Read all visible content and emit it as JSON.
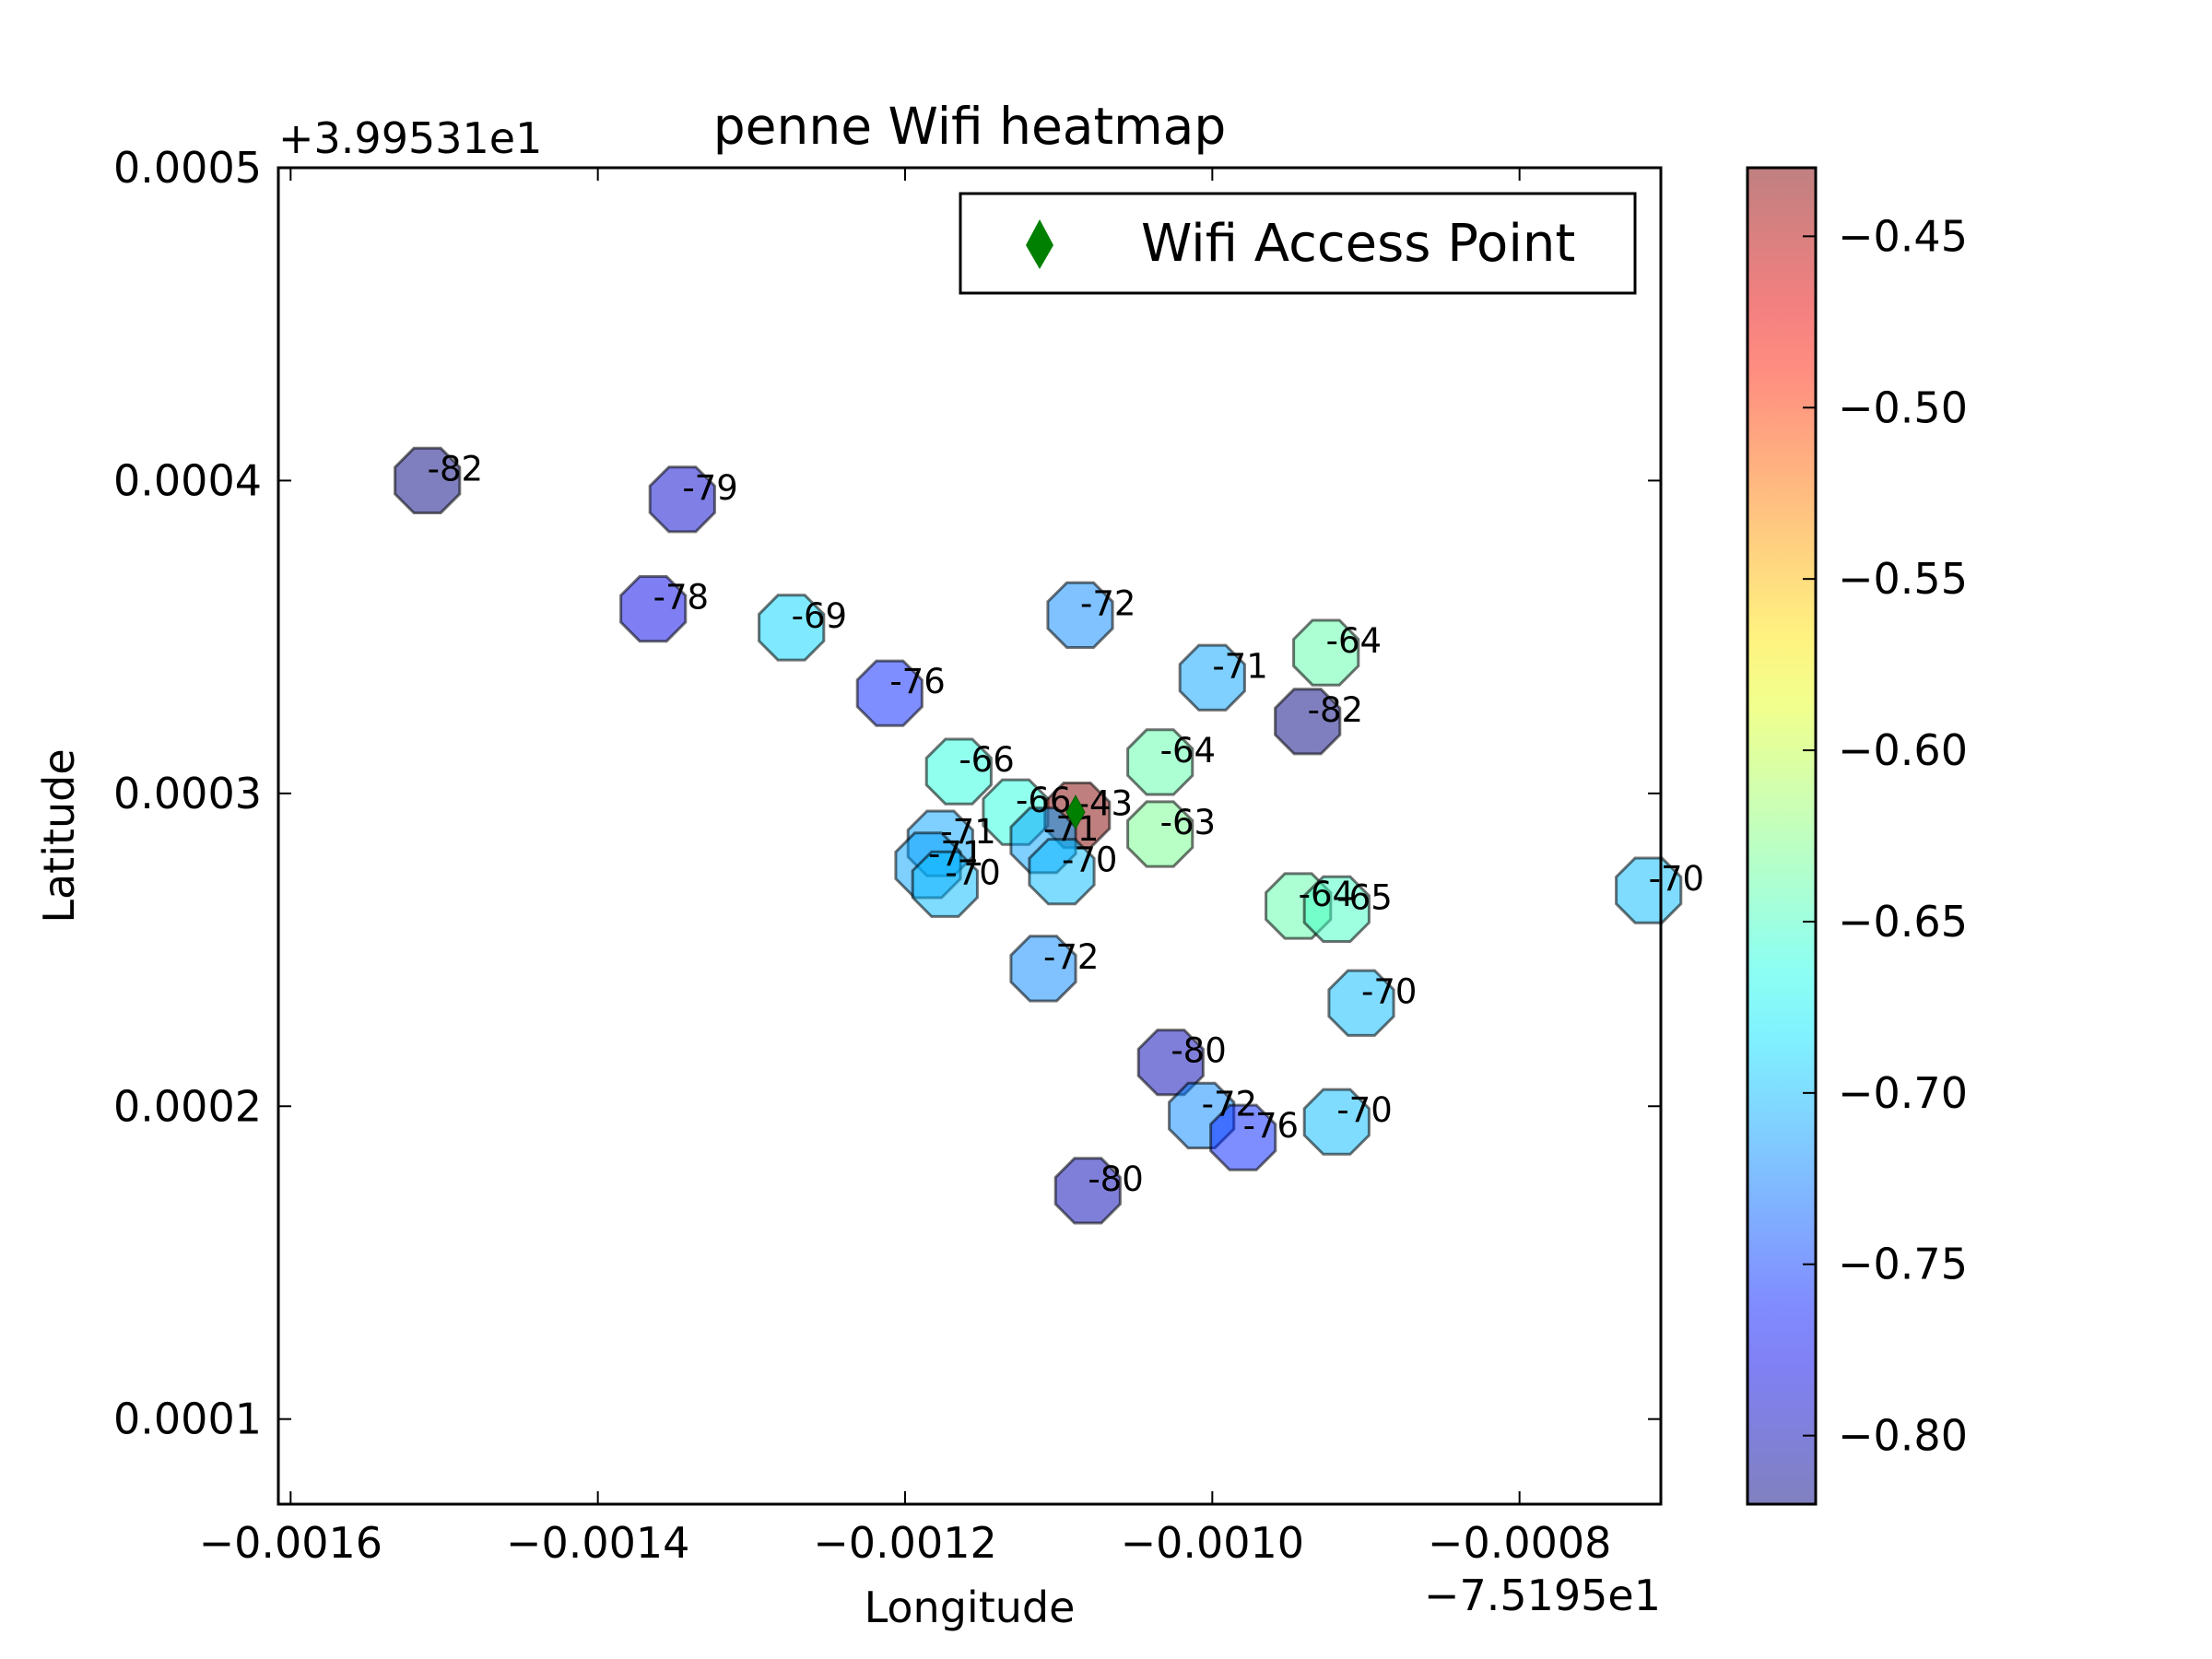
{
  "chart_data": {
    "type": "scatter",
    "title": "penne Wifi heatmap",
    "xlabel": "Longitude",
    "ylabel": "Latitude",
    "x_offset_label": "−7.5195e1",
    "y_offset_label": "+3.99531e1",
    "x_axis_base": -75.195,
    "y_axis_base": 39.9531,
    "xlim": [
      -0.001608,
      -0.000708
    ],
    "ylim": [
      7.28e-05,
      0.0005
    ],
    "xticks": [
      -0.0016,
      -0.0014,
      -0.0012,
      -0.001,
      -0.0008
    ],
    "xtick_labels": [
      "−0.0016",
      "−0.0014",
      "−0.0012",
      "−0.0010",
      "−0.0008"
    ],
    "yticks": [
      0.0001,
      0.0002,
      0.0003,
      0.0004,
      0.0005
    ],
    "ytick_labels": [
      "0.0001",
      "0.0002",
      "0.0003",
      "0.0004",
      "0.0005"
    ],
    "grid": false,
    "marker": "octagon",
    "alpha": 0.5,
    "colormap": "jet",
    "colorbar": {
      "range": [
        -0.82,
        -0.43
      ],
      "ticks": [
        -0.45,
        -0.5,
        -0.55,
        -0.6,
        -0.65,
        -0.7,
        -0.75,
        -0.8
      ],
      "tick_labels": [
        "−0.45",
        "−0.50",
        "−0.55",
        "−0.60",
        "−0.65",
        "−0.70",
        "−0.75",
        "−0.80"
      ]
    },
    "points": [
      {
        "x": -0.001511,
        "y": 0.0004,
        "label": "-82"
      },
      {
        "x": -0.001345,
        "y": 0.000394,
        "label": "-79"
      },
      {
        "x": -0.001364,
        "y": 0.000359,
        "label": "-78"
      },
      {
        "x": -0.001274,
        "y": 0.000353,
        "label": "-69"
      },
      {
        "x": -0.00121,
        "y": 0.000332,
        "label": "-76"
      },
      {
        "x": -0.001086,
        "y": 0.000357,
        "label": "-72"
      },
      {
        "x": -0.000926,
        "y": 0.000345,
        "label": "-64"
      },
      {
        "x": -0.001,
        "y": 0.000337,
        "label": "-71"
      },
      {
        "x": -0.000938,
        "y": 0.000323,
        "label": "-82"
      },
      {
        "x": -0.001165,
        "y": 0.000307,
        "label": "-66"
      },
      {
        "x": -0.001034,
        "y": 0.00031,
        "label": "-64"
      },
      {
        "x": -0.001128,
        "y": 0.000294,
        "label": "-66"
      },
      {
        "x": -0.001088,
        "y": 0.000293,
        "label": "-43"
      },
      {
        "x": -0.001034,
        "y": 0.000287,
        "label": "-63"
      },
      {
        "x": -0.001177,
        "y": 0.000284,
        "label": "-71"
      },
      {
        "x": -0.00111,
        "y": 0.000285,
        "label": "-71"
      },
      {
        "x": -0.001185,
        "y": 0.000277,
        "label": "-71"
      },
      {
        "x": -0.001098,
        "y": 0.000275,
        "label": "-70"
      },
      {
        "x": -0.001174,
        "y": 0.000271,
        "label": "-70"
      },
      {
        "x": -0.000944,
        "y": 0.000264,
        "label": "-64"
      },
      {
        "x": -0.000919,
        "y": 0.000263,
        "label": "-65"
      },
      {
        "x": -0.000716,
        "y": 0.000269,
        "label": "-70"
      },
      {
        "x": -0.00111,
        "y": 0.000244,
        "label": "-72"
      },
      {
        "x": -0.000903,
        "y": 0.000233,
        "label": "-70"
      },
      {
        "x": -0.001027,
        "y": 0.000214,
        "label": "-80"
      },
      {
        "x": -0.001007,
        "y": 0.000197,
        "label": "-72"
      },
      {
        "x": -0.00098,
        "y": 0.00019,
        "label": "-76"
      },
      {
        "x": -0.000919,
        "y": 0.000195,
        "label": "-70"
      },
      {
        "x": -0.001081,
        "y": 0.000173,
        "label": "-80"
      }
    ],
    "access_point": {
      "x": -0.001089,
      "y": 0.000294
    },
    "legend": {
      "placement": "upper right",
      "entries": [
        {
          "label": "Wifi Access Point",
          "marker": "diamond",
          "color": "#008000"
        }
      ]
    }
  }
}
